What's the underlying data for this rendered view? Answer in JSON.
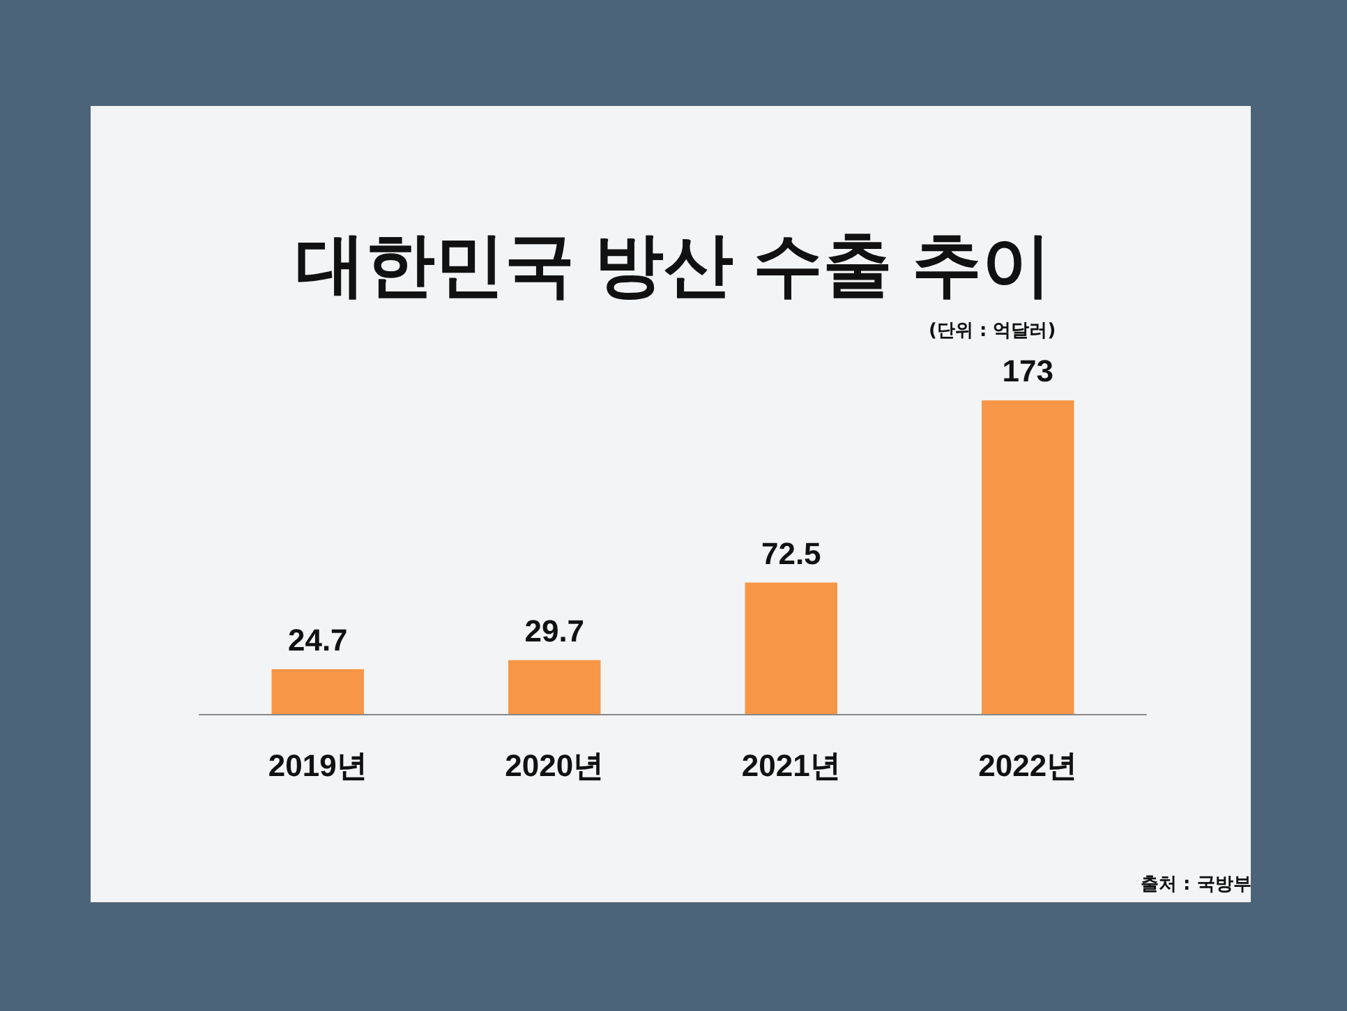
{
  "chart_data": {
    "type": "bar",
    "title": "대한민국 방산 수출 추이",
    "categories": [
      "2019년",
      "2020년",
      "2021년",
      "2022년"
    ],
    "values": [
      24.7,
      29.7,
      72.5,
      173
    ],
    "color": "#f79646",
    "data_labels": true,
    "annotations": [
      "(단위 : 억달러)",
      "출처 : 국방부"
    ]
  }
}
